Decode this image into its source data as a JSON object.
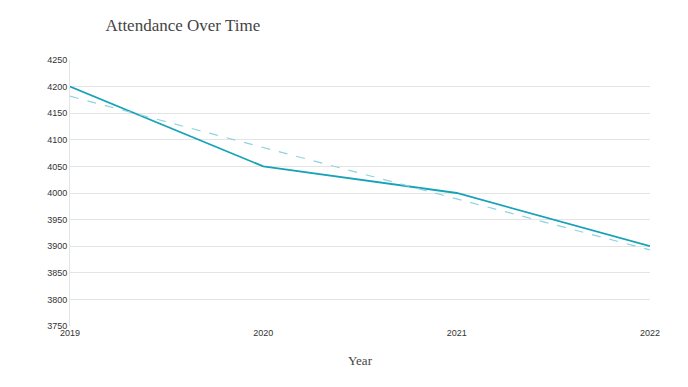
{
  "chart_data": {
    "type": "line",
    "title": "Attendance Over Time",
    "x_label": "Year",
    "categories": [
      "2019",
      "2020",
      "2021",
      "2022"
    ],
    "series": [
      {
        "color": "#17a2b8",
        "line_style": "solid",
        "values": [
          4200,
          4050,
          4000,
          3900
        ]
      },
      {
        "color": "#8fd3de",
        "line_style": "dashed",
        "values": [
          4182,
          4085,
          3989,
          3893
        ]
      }
    ],
    "ylim": [
      3750,
      4250
    ],
    "yticks": [
      3750,
      3800,
      3850,
      3900,
      3950,
      4000,
      4050,
      4100,
      4150,
      4200,
      4250
    ],
    "grid": true
  }
}
